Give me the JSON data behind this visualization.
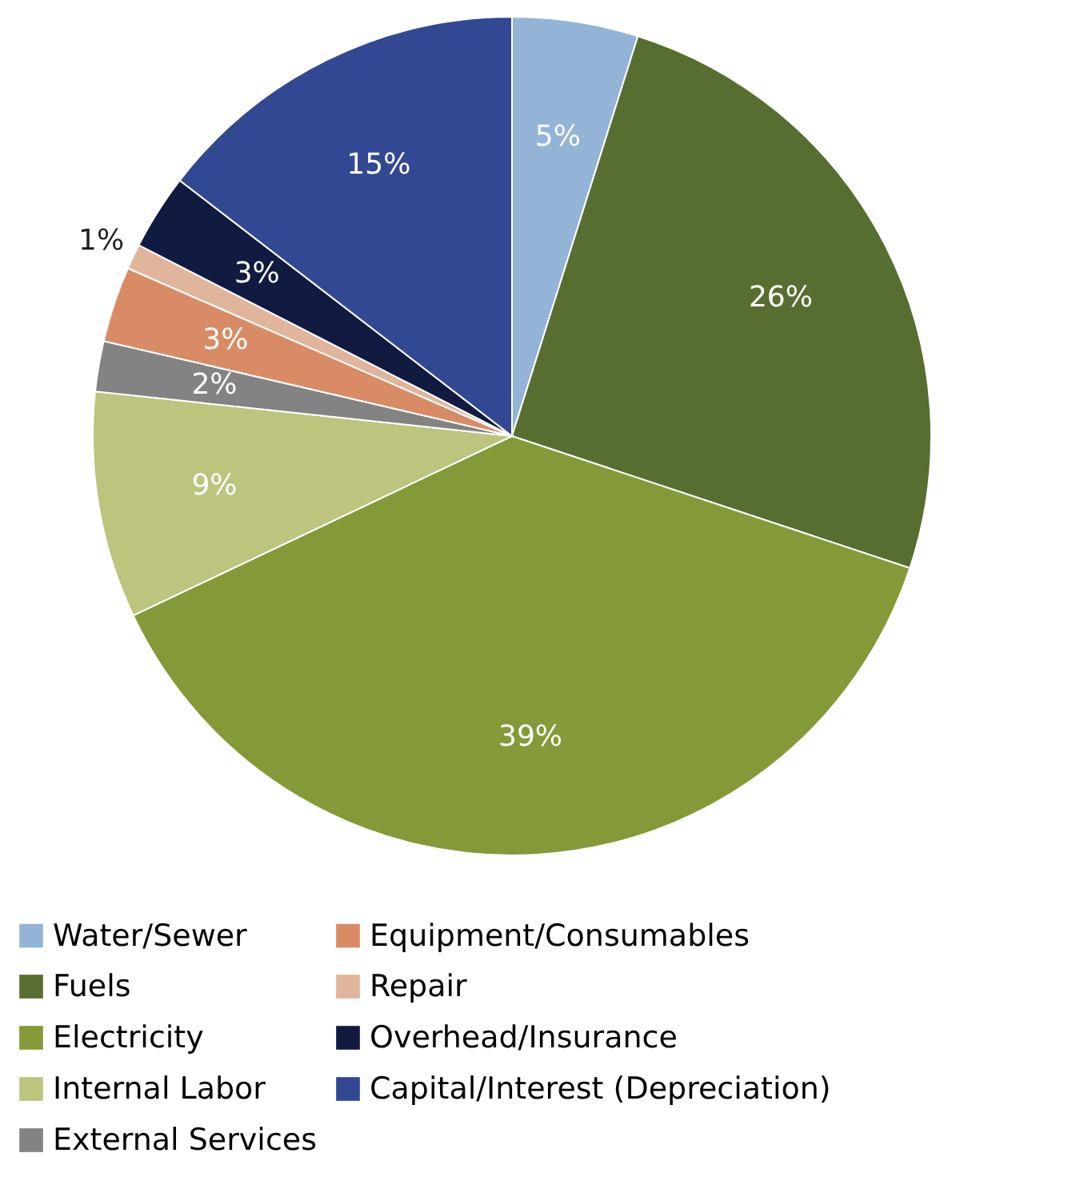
{
  "chart_data": {
    "type": "pie",
    "categories": [
      "Water/Sewer",
      "Fuels",
      "Electricity",
      "Internal Labor",
      "External Services",
      "Equipment/Consumables",
      "Repair",
      "Overhead/Insurance",
      "Capital/Interest (Depreciation)"
    ],
    "values": [
      5,
      26,
      39,
      9,
      2,
      3,
      1,
      3,
      15
    ],
    "value_labels": [
      "5%",
      "26%",
      "39%",
      "9%",
      "2%",
      "3%",
      "1%",
      "3%",
      "15%"
    ],
    "colors": [
      "#93b3d7",
      "#586e30",
      "#849a38",
      "#bcc47e",
      "#838383",
      "#d98b65",
      "#e0b59b",
      "#111a40",
      "#334893"
    ],
    "legend": "bottom"
  }
}
